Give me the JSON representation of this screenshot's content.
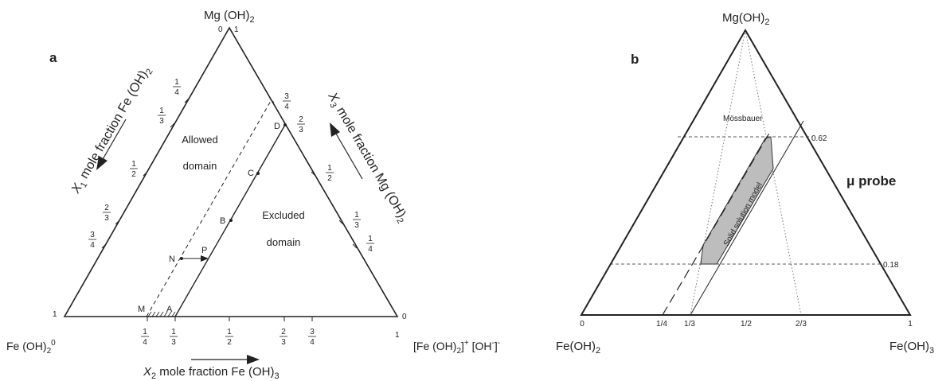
{
  "panel_a": {
    "letter": "a",
    "apex_top": "Mg (OH)",
    "apex_top_sub": "2",
    "apex_left": "Fe (OH)",
    "apex_left_sub": "2",
    "apex_left_zero": "0",
    "apex_right": "[Fe (OH)",
    "apex_right_sub": "2",
    "apex_right_rest": "]",
    "apex_right_sup1": "+",
    "apex_right_mid": " [OH",
    "apex_right_sup2": "-",
    "apex_right_end": "]",
    "apex_right_sup3": "-",
    "axis_x1_var": "X",
    "axis_x1_idx": "1",
    "axis_x1_text": " mole fraction Fe (OH)",
    "axis_x1_sub": "2",
    "axis_x2_var": "X",
    "axis_x2_idx": "2",
    "axis_x2_text": " mole fraction Fe (OH)",
    "axis_x2_sub": "3",
    "axis_x3_var": "X",
    "axis_x3_idx": "3",
    "axis_x3_text": " mole fraction Mg (OH)",
    "axis_x3_sub": "2",
    "top_zero": "0",
    "top_one": "1",
    "left_one": "1",
    "right_zero": "0",
    "right_one": "1",
    "allowed_1": "Allowed",
    "allowed_2": "domain",
    "excluded_1": "Excluded",
    "excluded_2": "domain",
    "points": {
      "A": "A",
      "B": "B",
      "C": "C",
      "D": "D",
      "M": "M",
      "N": "N",
      "P": "P"
    },
    "frac": {
      "one": "1",
      "two": "2",
      "three": "3",
      "four": "4"
    }
  },
  "panel_b": {
    "letter": "b",
    "apex_top": "Mg(OH)",
    "apex_top_sub": "2",
    "apex_left": "Fe(OH)",
    "apex_left_sub": "2",
    "apex_right": "Fe(OH)",
    "apex_right_sub": "3",
    "mossbauer": "Mössbauer",
    "solid_solution": "Solid solution model",
    "mu_probe": "μ probe",
    "line_062": "0.62",
    "line_018": "0.18",
    "tick_0": "0",
    "tick_14": "1/4",
    "tick_13": "1/3",
    "tick_12": "1/2",
    "tick_23": "2/3",
    "tick_1": "1"
  }
}
